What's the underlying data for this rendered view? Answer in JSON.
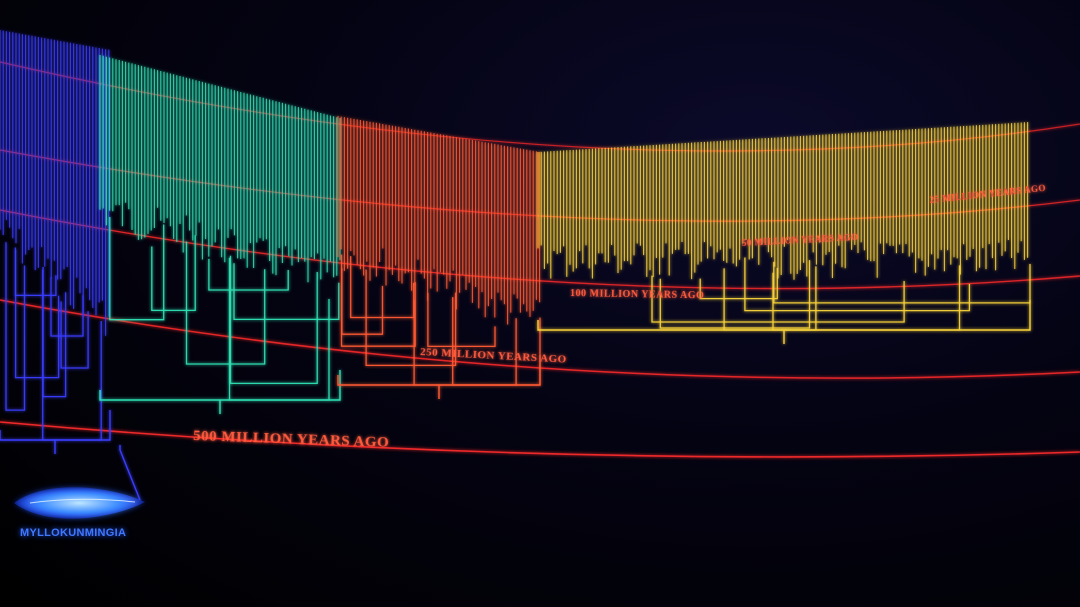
{
  "timeline_labels": [
    {
      "text": "500 MILLION YEARS AGO"
    },
    {
      "text": "250 MILLION YEARS AGO"
    },
    {
      "text": "100 MILLION YEARS AGO"
    },
    {
      "text": "50 MILLION YEARS AGO"
    },
    {
      "text": "25 MILLION YEARS AGO"
    }
  ],
  "root_organism": {
    "label": "MYLLOKUNMINGIA",
    "icon": "fish-fossil-icon"
  },
  "eras": [
    {
      "color": "#3a3cff"
    },
    {
      "color": "#2fe0b4"
    },
    {
      "color": "#ff5a32"
    },
    {
      "color": "#f7d23a"
    }
  ],
  "colors": {
    "background": "#000000",
    "timeline_line": "#ff2a2a",
    "label": "#ff5a3c",
    "root_label": "#3f78ff"
  }
}
